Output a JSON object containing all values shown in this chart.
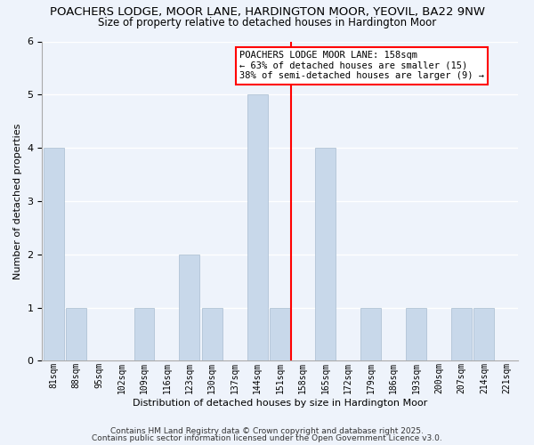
{
  "title1": "POACHERS LODGE, MOOR LANE, HARDINGTON MOOR, YEOVIL, BA22 9NW",
  "title2": "Size of property relative to detached houses in Hardington Moor",
  "xlabel": "Distribution of detached houses by size in Hardington Moor",
  "ylabel": "Number of detached properties",
  "bins": [
    "81sqm",
    "88sqm",
    "95sqm",
    "102sqm",
    "109sqm",
    "116sqm",
    "123sqm",
    "130sqm",
    "137sqm",
    "144sqm",
    "151sqm",
    "158sqm",
    "165sqm",
    "172sqm",
    "179sqm",
    "186sqm",
    "193sqm",
    "200sqm",
    "207sqm",
    "214sqm",
    "221sqm"
  ],
  "values": [
    4,
    1,
    0,
    0,
    1,
    0,
    2,
    1,
    0,
    5,
    1,
    0,
    4,
    0,
    1,
    0,
    1,
    0,
    1,
    1,
    0
  ],
  "bar_color": "#c8d8ea",
  "bar_edge_color": "#a8bcd0",
  "vline_color": "red",
  "vline_x_index": 11,
  "ylim": [
    0,
    6
  ],
  "yticks": [
    0,
    1,
    2,
    3,
    4,
    5,
    6
  ],
  "annotation_line1": "POACHERS LODGE MOOR LANE: 158sqm",
  "annotation_line2": "← 63% of detached houses are smaller (15)",
  "annotation_line3": "38% of semi-detached houses are larger (9) →",
  "annotation_box_edge_color": "red",
  "footnote1": "Contains HM Land Registry data © Crown copyright and database right 2025.",
  "footnote2": "Contains public sector information licensed under the Open Government Licence v3.0.",
  "background_color": "#eef3fb",
  "grid_color": "#ffffff",
  "title1_fontsize": 9.5,
  "title2_fontsize": 8.5,
  "axis_label_fontsize": 8,
  "tick_fontsize": 7,
  "annotation_fontsize": 7.5,
  "footnote_fontsize": 6.5
}
